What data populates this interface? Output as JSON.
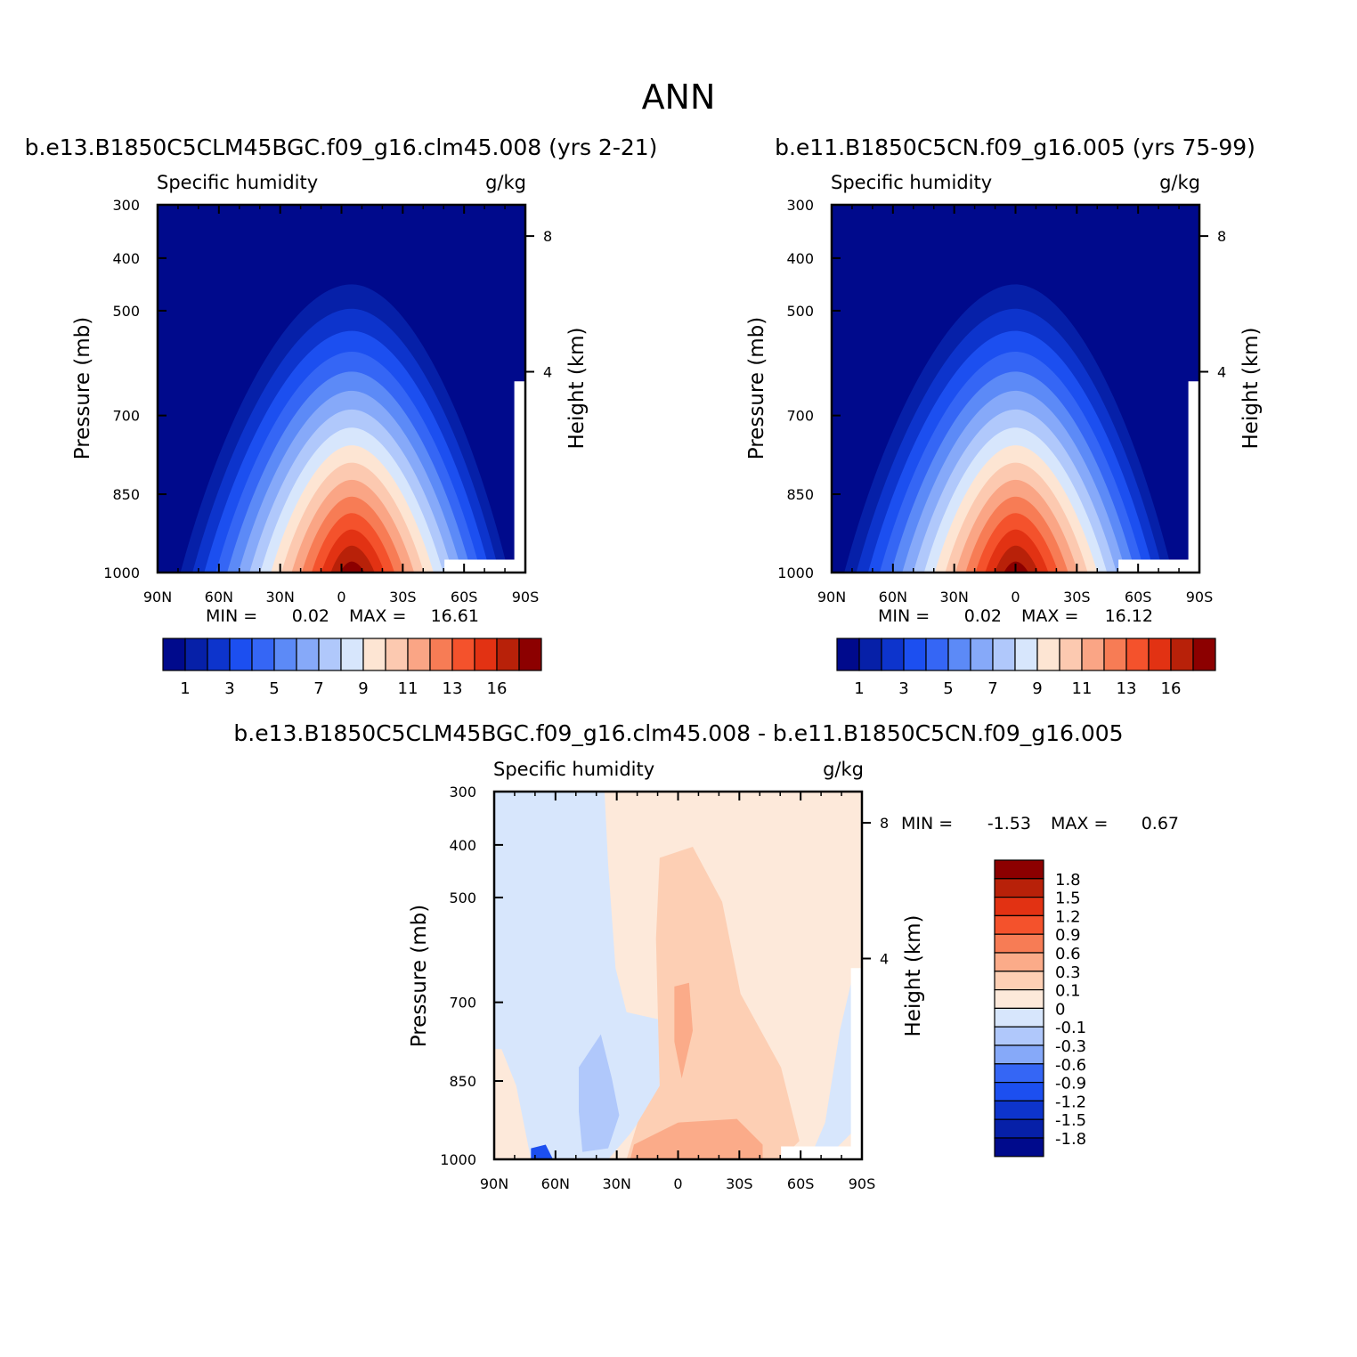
{
  "title": "ANN",
  "colors": {
    "abs_levels": [
      "#000a8c",
      "#0620a8",
      "#0d34cc",
      "#1c4ff0",
      "#3566f5",
      "#5c8af7",
      "#86a9f9",
      "#b0c8fb",
      "#d7e6fc",
      "#fde5d3",
      "#fcc9b0",
      "#faa585",
      "#f77c55",
      "#f4522c",
      "#e23213",
      "#b82109",
      "#8c0000"
    ],
    "diff_levels": [
      "#000a8c",
      "#0620a8",
      "#0d34cc",
      "#1c4ff0",
      "#3566f5",
      "#86a9f9",
      "#b0c8fb",
      "#d7e6fc",
      "#fde9da",
      "#fdcfb4",
      "#fbab89",
      "#f77c55",
      "#f4522c",
      "#e23213",
      "#b82109",
      "#8c0000"
    ]
  },
  "chart_data": [
    {
      "type": "contour",
      "title": "b.e13.B1850C5CLM45BGC.f09_g16.clm45.008 (yrs 2-21)",
      "variable": "Specific humidity",
      "units": "g/kg",
      "xlabel": "",
      "ylabel": "Pressure (mb)",
      "y2label": "Height (km)",
      "x_ticks": [
        "90N",
        "60N",
        "30N",
        "0",
        "30S",
        "60S",
        "90S"
      ],
      "y_ticks": [
        "300",
        "400",
        "500",
        "700",
        "850",
        "1000"
      ],
      "y2_ticks": [
        "8",
        "4"
      ],
      "min_label": "MIN =",
      "min_value": "0.02",
      "max_label": "MAX =",
      "max_value": "16.61",
      "colorbar_labels": [
        "1",
        "3",
        "5",
        "7",
        "9",
        "11",
        "13",
        "16"
      ],
      "peak_latitude": -5,
      "max": 16.61
    },
    {
      "type": "contour",
      "title": "b.e11.B1850C5CN.f09_g16.005 (yrs 75-99)",
      "variable": "Specific humidity",
      "units": "g/kg",
      "xlabel": "",
      "ylabel": "Pressure (mb)",
      "y2label": "Height (km)",
      "x_ticks": [
        "90N",
        "60N",
        "30N",
        "0",
        "30S",
        "60S",
        "90S"
      ],
      "y_ticks": [
        "300",
        "400",
        "500",
        "700",
        "850",
        "1000"
      ],
      "y2_ticks": [
        "8",
        "4"
      ],
      "min_label": "MIN =",
      "min_value": "0.02",
      "max_label": "MAX =",
      "max_value": "16.12",
      "colorbar_labels": [
        "1",
        "3",
        "5",
        "7",
        "9",
        "11",
        "13",
        "16"
      ],
      "peak_latitude": 0,
      "max": 16.12
    },
    {
      "type": "contour",
      "title": "b.e13.B1850C5CLM45BGC.f09_g16.clm45.008 - b.e11.B1850C5CN.f09_g16.005",
      "variable": "Specific humidity",
      "units": "g/kg",
      "xlabel": "",
      "ylabel": "Pressure (mb)",
      "y2label": "Height (km)",
      "x_ticks": [
        "90N",
        "60N",
        "30N",
        "0",
        "30S",
        "60S",
        "90S"
      ],
      "y_ticks": [
        "300",
        "400",
        "500",
        "700",
        "850",
        "1000"
      ],
      "y2_ticks": [
        "8",
        "4"
      ],
      "min_label": "MIN =",
      "min_value": "-1.53",
      "max_label": "MAX =",
      "max_value": "0.67",
      "colorbar_labels": [
        "1.8",
        "1.5",
        "1.2",
        "0.9",
        "0.6",
        "0.3",
        "0.1",
        "0",
        "-0.1",
        "-0.3",
        "-0.6",
        "-0.9",
        "-1.2",
        "-1.5",
        "-1.8"
      ]
    }
  ]
}
